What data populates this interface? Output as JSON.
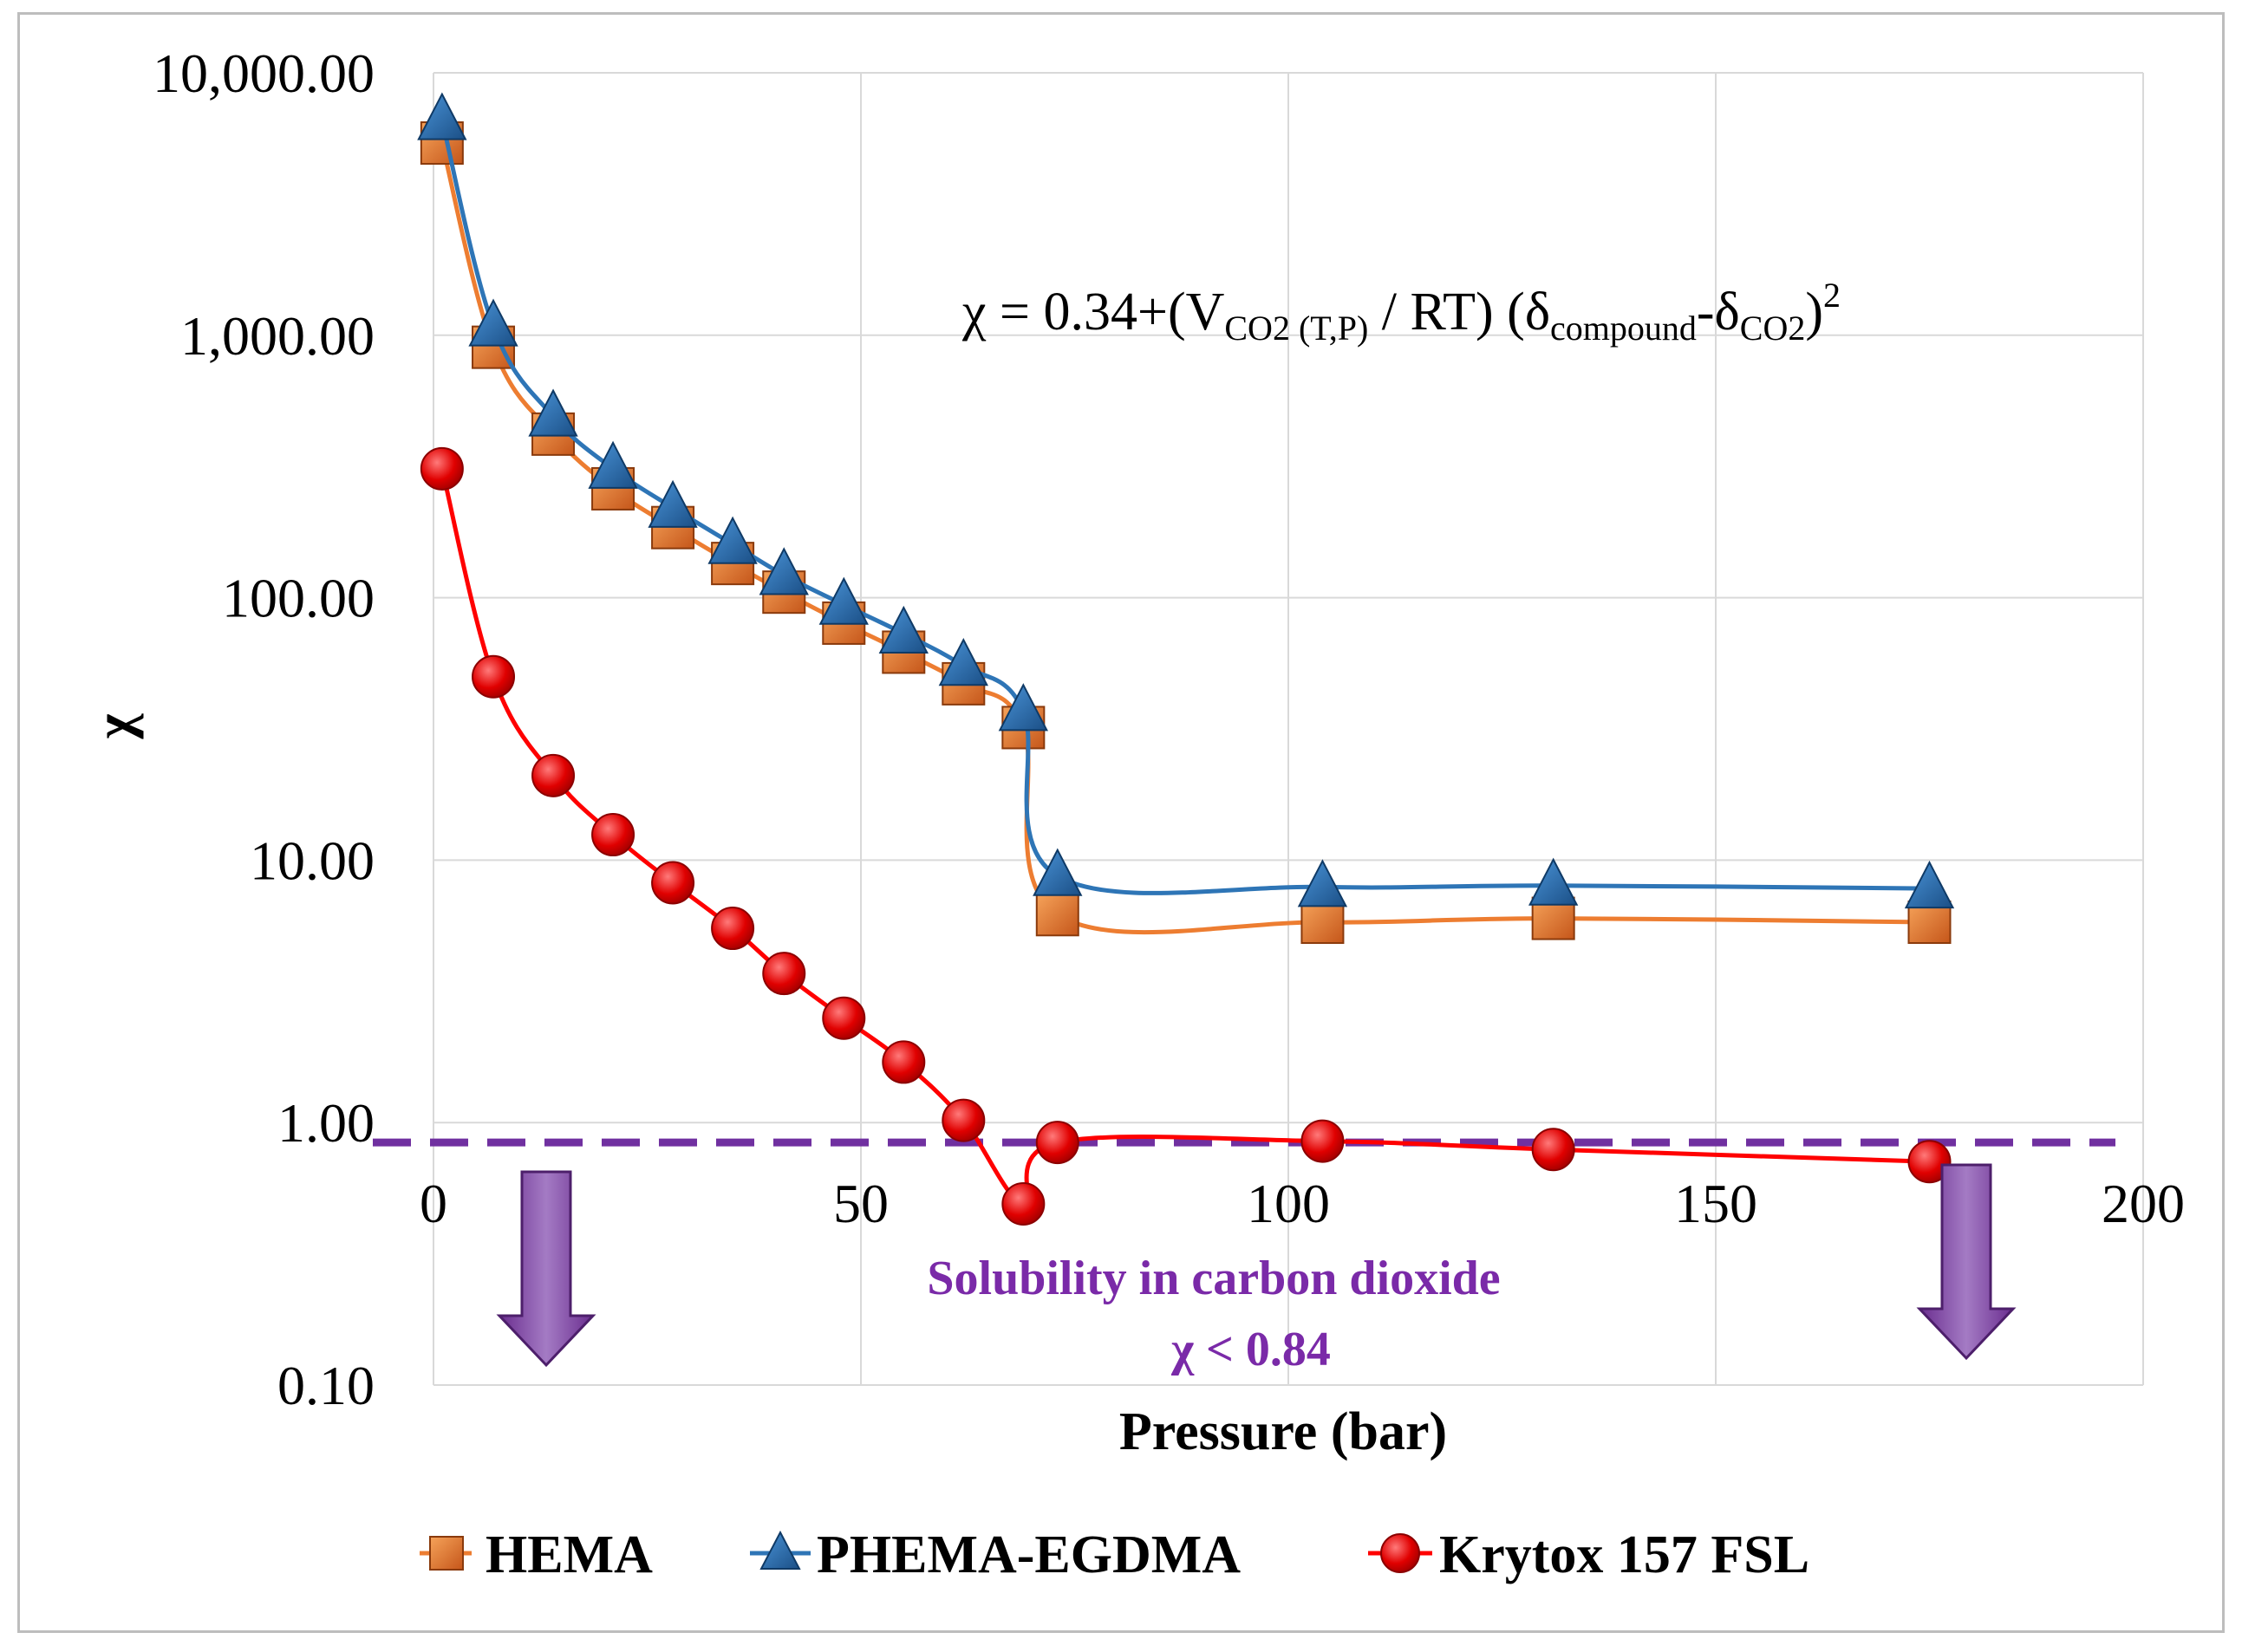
{
  "chart_data": {
    "type": "line",
    "title": "",
    "xlabel": "Pressure (bar)",
    "ylabel": "χ",
    "xlim": [
      0,
      200
    ],
    "ylim": [
      0.1,
      10000
    ],
    "yscale": "log",
    "grid": true,
    "x_ticks": [
      "0",
      "50",
      "100",
      "150",
      "200"
    ],
    "y_ticks": [
      "0.10",
      "1.00",
      "10.00",
      "100.00",
      "1,000.00",
      "10,000.00"
    ],
    "legend_position": "bottom",
    "series": [
      {
        "name": "HEMA",
        "color": "#ed7d31",
        "marker": "square",
        "x": [
          1,
          7,
          14,
          21,
          28,
          35,
          41,
          48,
          55,
          62,
          69,
          73,
          104,
          131,
          175
        ],
        "y": [
          5400,
          900,
          420,
          260,
          185,
          135,
          105,
          80,
          62,
          47,
          32,
          6.2,
          5.8,
          6.0,
          5.8
        ]
      },
      {
        "name": "PHEMA-EGDMA",
        "color": "#2e75b6",
        "marker": "triangle",
        "x": [
          1,
          7,
          14,
          21,
          28,
          35,
          41,
          48,
          55,
          62,
          69,
          73,
          104,
          131,
          175
        ],
        "y": [
          6600,
          1080,
          490,
          310,
          220,
          160,
          122,
          94,
          73,
          55,
          37,
          8.7,
          7.9,
          8.0,
          7.8
        ]
      },
      {
        "name": "Krytox 157 FSL",
        "color": "#ff0000",
        "marker": "circle",
        "x": [
          1,
          7,
          14,
          21,
          28,
          35,
          41,
          48,
          55,
          62,
          69,
          73,
          104,
          131,
          175
        ],
        "y": [
          310,
          50,
          21,
          12.5,
          8.2,
          5.5,
          3.7,
          2.5,
          1.7,
          1.02,
          0.49,
          0.84,
          0.85,
          0.79,
          0.71
        ]
      }
    ],
    "threshold": {
      "value": 0.84,
      "color": "#7030a0"
    },
    "annotations": {
      "equation": "χ = 0.34+(VCO2 (T,P) / RT) (δcompound-δCO2)2",
      "solubility_label": "Solubility in carbon dioxide",
      "solubility_condition": "χ < 0.84"
    }
  }
}
